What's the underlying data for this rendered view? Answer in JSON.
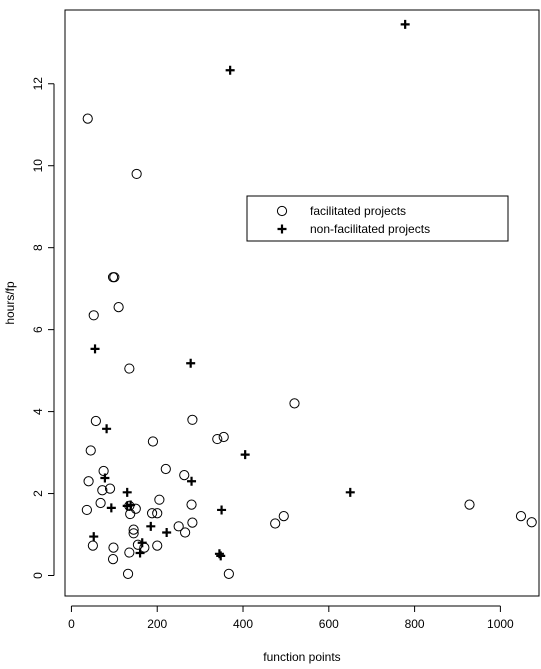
{
  "chart_data": {
    "type": "scatter",
    "title": "",
    "xlabel": "function points",
    "ylabel": "hours/fp",
    "xlim": [
      -15,
      1090
    ],
    "ylim": [
      -0.5,
      13.8
    ],
    "xticks": [
      "0",
      "200",
      "400",
      "600",
      "800",
      "1000"
    ],
    "yticks": [
      "0",
      "2",
      "4",
      "6",
      "8",
      "10",
      "12"
    ],
    "grid": false,
    "legend_position": "center-right",
    "series": [
      {
        "name": "facilitated projects",
        "marker": "open-circle",
        "points": [
          [
            38,
            11.15
          ],
          [
            152,
            9.8
          ],
          [
            97,
            7.28
          ],
          [
            100,
            7.28
          ],
          [
            110,
            6.55
          ],
          [
            52,
            6.35
          ],
          [
            135,
            5.05
          ],
          [
            520,
            4.2
          ],
          [
            282,
            3.8
          ],
          [
            57,
            3.77
          ],
          [
            355,
            3.38
          ],
          [
            340,
            3.33
          ],
          [
            190,
            3.27
          ],
          [
            45,
            3.05
          ],
          [
            220,
            2.6
          ],
          [
            75,
            2.55
          ],
          [
            263,
            2.45
          ],
          [
            40,
            2.3
          ],
          [
            90,
            2.12
          ],
          [
            72,
            2.08
          ],
          [
            205,
            1.85
          ],
          [
            68,
            1.77
          ],
          [
            280,
            1.73
          ],
          [
            928,
            1.73
          ],
          [
            135,
            1.7
          ],
          [
            150,
            1.63
          ],
          [
            36,
            1.6
          ],
          [
            188,
            1.52
          ],
          [
            200,
            1.52
          ],
          [
            137,
            1.5
          ],
          [
            495,
            1.45
          ],
          [
            1048,
            1.45
          ],
          [
            475,
            1.27
          ],
          [
            282,
            1.29
          ],
          [
            1073,
            1.3
          ],
          [
            250,
            1.2
          ],
          [
            145,
            1.12
          ],
          [
            145,
            1.03
          ],
          [
            265,
            1.05
          ],
          [
            155,
            0.75
          ],
          [
            50,
            0.73
          ],
          [
            200,
            0.73
          ],
          [
            98,
            0.68
          ],
          [
            170,
            0.68
          ],
          [
            135,
            0.56
          ],
          [
            97,
            0.4
          ],
          [
            132,
            0.04
          ],
          [
            367,
            0.04
          ]
        ]
      },
      {
        "name": "non-facilitated projects",
        "marker": "cross",
        "points": [
          [
            778,
            13.45
          ],
          [
            370,
            12.33
          ],
          [
            55,
            5.53
          ],
          [
            278,
            5.18
          ],
          [
            82,
            3.58
          ],
          [
            405,
            2.95
          ],
          [
            650,
            2.03
          ],
          [
            130,
            2.03
          ],
          [
            78,
            2.38
          ],
          [
            280,
            2.3
          ],
          [
            138,
            1.72
          ],
          [
            130,
            1.7
          ],
          [
            93,
            1.65
          ],
          [
            350,
            1.6
          ],
          [
            185,
            1.2
          ],
          [
            222,
            1.05
          ],
          [
            52,
            0.95
          ],
          [
            165,
            0.8
          ],
          [
            160,
            0.55
          ],
          [
            345,
            0.53
          ],
          [
            348,
            0.48
          ]
        ]
      }
    ]
  }
}
